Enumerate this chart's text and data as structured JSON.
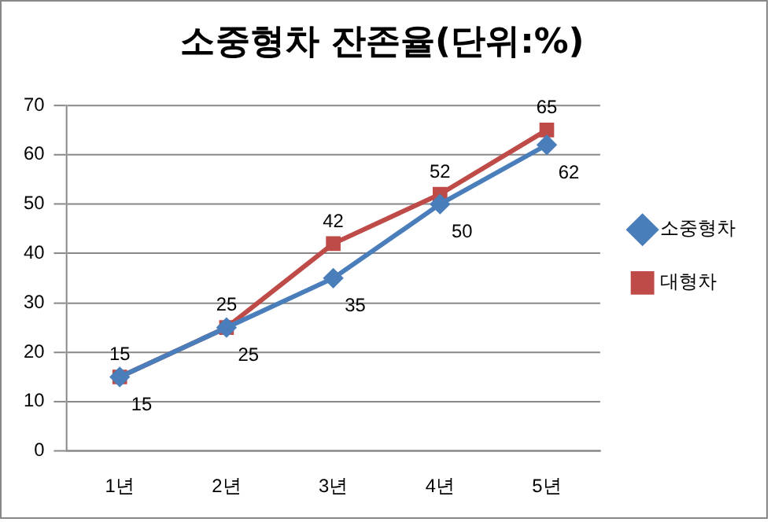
{
  "chart_data": {
    "type": "line",
    "title": "소중형차 잔존율(단위:%)",
    "categories": [
      "1년",
      "2년",
      "3년",
      "4년",
      "5년"
    ],
    "series": [
      {
        "name": "소중형차",
        "color": "#4a7ebb",
        "marker": "diamond",
        "values": [
          15,
          25,
          35,
          50,
          62
        ]
      },
      {
        "name": "대형차",
        "color": "#be4b48",
        "marker": "square",
        "values": [
          15,
          25,
          42,
          52,
          65
        ]
      }
    ],
    "ylim": [
      0,
      70
    ],
    "yticks": [
      0,
      10,
      20,
      30,
      40,
      50,
      60,
      70
    ],
    "grid": "y",
    "legend": "right",
    "data_labels": true
  }
}
